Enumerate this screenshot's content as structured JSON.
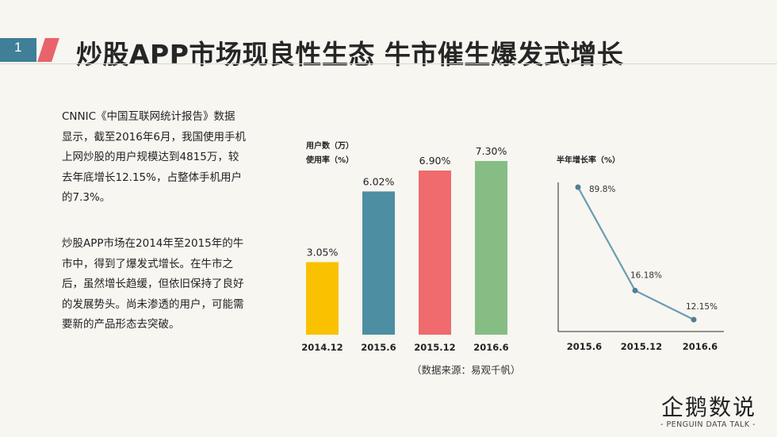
{
  "header": {
    "number": "1",
    "title": "炒股APP市场现良性生态 牛市催生爆发式增长"
  },
  "text": {
    "para1": "CNNIC《中国互联网统计报告》数据显示，截至2016年6月，我国使用手机上网炒股的用户规模达到4815万，较去年底增长12.15%，占整体手机用户的7.3%。",
    "para2": "炒股APP市场在2014年至2015年的牛市中，得到了爆发式增长。在牛市之后，虽然增长趋缓，但依旧保持了良好的发展势头。尚未渗透的用户，可能需要新的产品形态去突破。"
  },
  "chart_data": [
    {
      "type": "bar",
      "legend_lines": [
        "用户数（万）",
        "使用率（%）"
      ],
      "categories": [
        "2014.12",
        "2015.6",
        "2015.12",
        "2016.6"
      ],
      "values": [
        3.05,
        6.02,
        6.9,
        7.3
      ],
      "labels": [
        "3.05%",
        "6.02%",
        "6.90%",
        "7.30%"
      ],
      "colors": [
        "#f9c100",
        "#4e8ea2",
        "#ef6b6e",
        "#86bd85"
      ],
      "ylim": [
        0,
        8
      ],
      "grid": false
    },
    {
      "type": "line",
      "title": "半年增长率（%）",
      "categories": [
        "2015.6",
        "2015.12",
        "2016.6"
      ],
      "values": [
        89.8,
        16.18,
        12.15
      ],
      "labels": [
        "89.8%",
        "16.18%",
        "12.15%"
      ],
      "color": "#6a9cb3",
      "ylim": [
        0,
        100
      ],
      "grid": false
    }
  ],
  "source": "（数据来源：易观千帆）",
  "logo": {
    "name": "企鹅数说",
    "tagline": "- PENGUIN DATA TALK -"
  }
}
